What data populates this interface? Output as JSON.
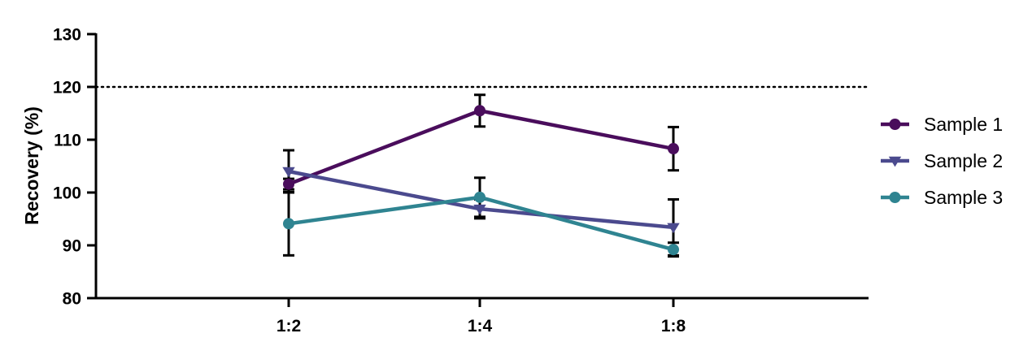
{
  "chart_data": {
    "type": "line",
    "categories": [
      "1:2",
      "1:4",
      "1:8"
    ],
    "xlabel": "",
    "ylabel": "Recovery (%)",
    "ylim": [
      80,
      130
    ],
    "yticks": [
      80,
      90,
      100,
      110,
      120,
      130
    ],
    "reference_line": {
      "value": 120,
      "style": "dotted"
    },
    "grid": false,
    "legend_position": "right",
    "series": [
      {
        "name": "Sample 1",
        "color": "#4a0d5c",
        "marker": "circle",
        "values": [
          101.6,
          115.5,
          108.3
        ],
        "errors": [
          1.0,
          3.0,
          4.1
        ]
      },
      {
        "name": "Sample 2",
        "color": "#4b4a8e",
        "marker": "triangle-down",
        "values": [
          104.0,
          96.9,
          93.4
        ],
        "errors": [
          4.0,
          1.8,
          5.3
        ]
      },
      {
        "name": "Sample 3",
        "color": "#2f8491",
        "marker": "circle",
        "values": [
          94.1,
          99.1,
          89.2
        ],
        "errors": [
          6.0,
          3.7,
          1.3
        ]
      }
    ]
  }
}
